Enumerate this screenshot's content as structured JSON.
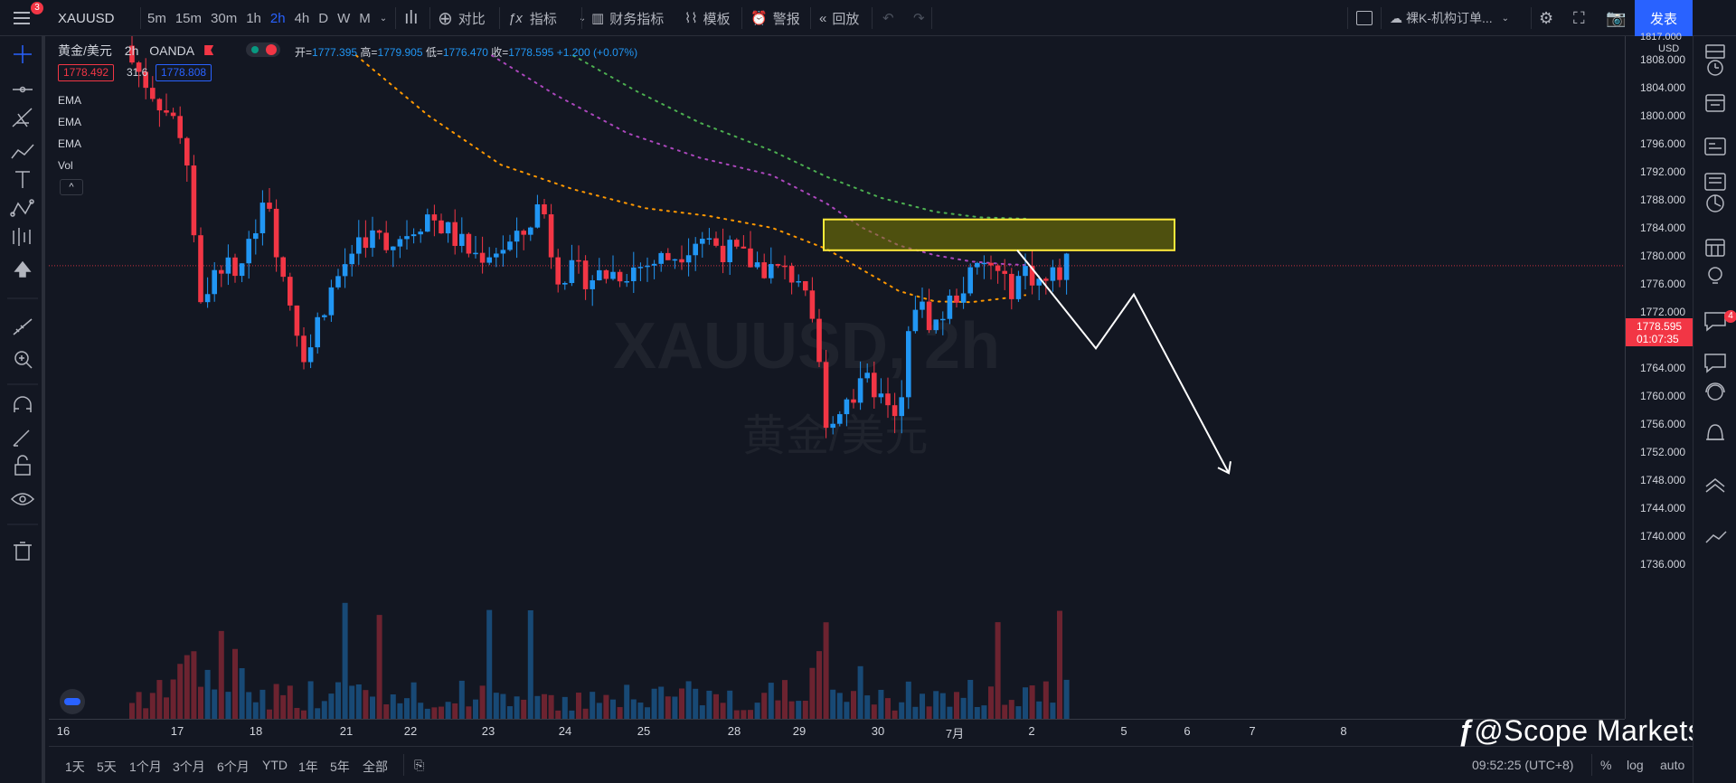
{
  "topbar": {
    "notifications": "3",
    "symbol": "XAUUSD",
    "intervals": [
      "5m",
      "15m",
      "30m",
      "1h",
      "2h",
      "4h",
      "D",
      "W",
      "M"
    ],
    "active_interval": "2h",
    "compare_label": "对比",
    "indicators_label": "指标",
    "financials_label": "财务指标",
    "templates_label": "模板",
    "alert_label": "警报",
    "replay_label": "回放",
    "layout_name": "裸K-机构订单...",
    "publish_label": "发表"
  },
  "legend": {
    "name": "黄金/美元",
    "interval": "2h",
    "exchange": "OANDA",
    "open_label": "开=",
    "open": "1777.395",
    "high_label": "高=",
    "high": "1779.905",
    "low_label": "低=",
    "low": "1776.470",
    "close_label": "收=",
    "close": "1778.595",
    "change": "+1.200 (+0.07%)",
    "bid": "1778.492",
    "spread": "31.6",
    "ask": "1778.808",
    "indicators": [
      "EMA",
      "EMA",
      "EMA",
      "Vol"
    ]
  },
  "watermark": {
    "symbol": "XAUUSD, 2h",
    "name": "黄金/美元"
  },
  "price_axis": {
    "currency": "USD",
    "top_partial": "1817.000",
    "labels": [
      "1808.000",
      "1804.000",
      "1800.000",
      "1796.000",
      "1792.000",
      "1788.000",
      "1784.000",
      "1780.000",
      "1776.000",
      "1772.000",
      "1768.000",
      "1764.000",
      "1760.000",
      "1756.000",
      "1752.000",
      "1748.000",
      "1744.000",
      "1740.000",
      "1736.000"
    ],
    "current_price": "1778.595",
    "countdown": "01:07:35"
  },
  "time_axis": {
    "labels": [
      "16",
      "17",
      "18",
      "21",
      "22",
      "23",
      "24",
      "25",
      "28",
      "29",
      "30",
      "7月",
      "2",
      "5",
      "6",
      "7",
      "8"
    ]
  },
  "bottombar": {
    "ranges": [
      "1天",
      "5天",
      "1个月",
      "3个月",
      "6个月",
      "YTD",
      "1年",
      "5年",
      "全部"
    ],
    "time": "09:52:25 (UTC+8)",
    "percent": "%",
    "log": "log",
    "auto": "auto"
  },
  "brand": "@Scope Markets",
  "right_badge": "4",
  "colors": {
    "up": "#2196f3",
    "down": "#f23645",
    "bg": "#131722",
    "zone": "#ffeb3b",
    "ema_orange": "#ff9800",
    "ema_purple": "#ab47bc",
    "ema_green": "#4caf50"
  },
  "chart_data": {
    "type": "candlestick",
    "symbol": "XAUUSD",
    "timeframe": "2h",
    "ylim": [
      1734,
      1817
    ],
    "zone": {
      "low": 1780.8,
      "high": 1785.2
    },
    "projection": [
      1780.8,
      1778.6,
      1766.8,
      1774.5,
      1749.0
    ],
    "current_price": 1778.595
  }
}
